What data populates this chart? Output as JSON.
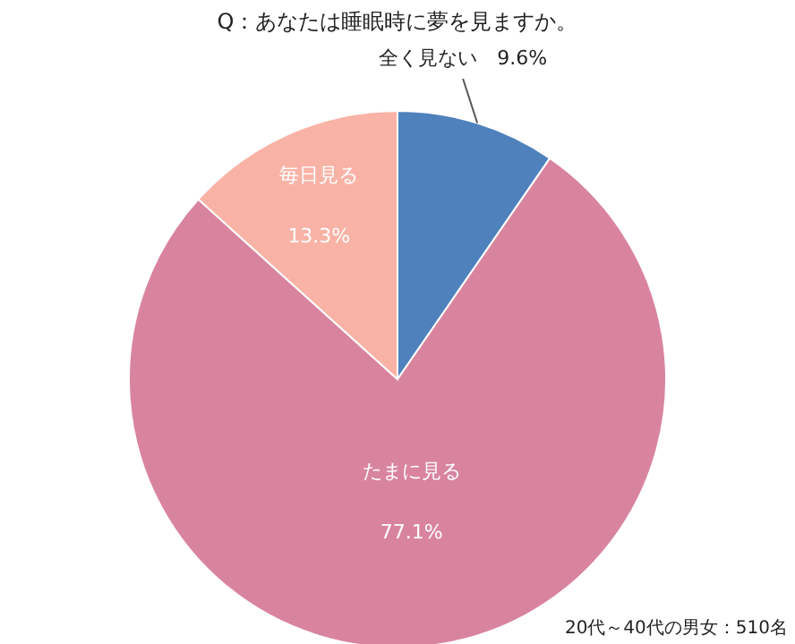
{
  "chart_data": {
    "type": "pie",
    "title": "Q：あなたは睡眠時に夢を見ますか。",
    "categories": [
      "全く見ない",
      "たまに見る",
      "毎日見る"
    ],
    "values": [
      9.6,
      77.1,
      13.3
    ],
    "value_labels": [
      "9.6%",
      "77.1%",
      "13.3%"
    ],
    "colors": [
      "#4f81bd",
      "#d9849f",
      "#f9b3a6"
    ],
    "annotations": [
      "20代～40代の男女：510名"
    ]
  }
}
